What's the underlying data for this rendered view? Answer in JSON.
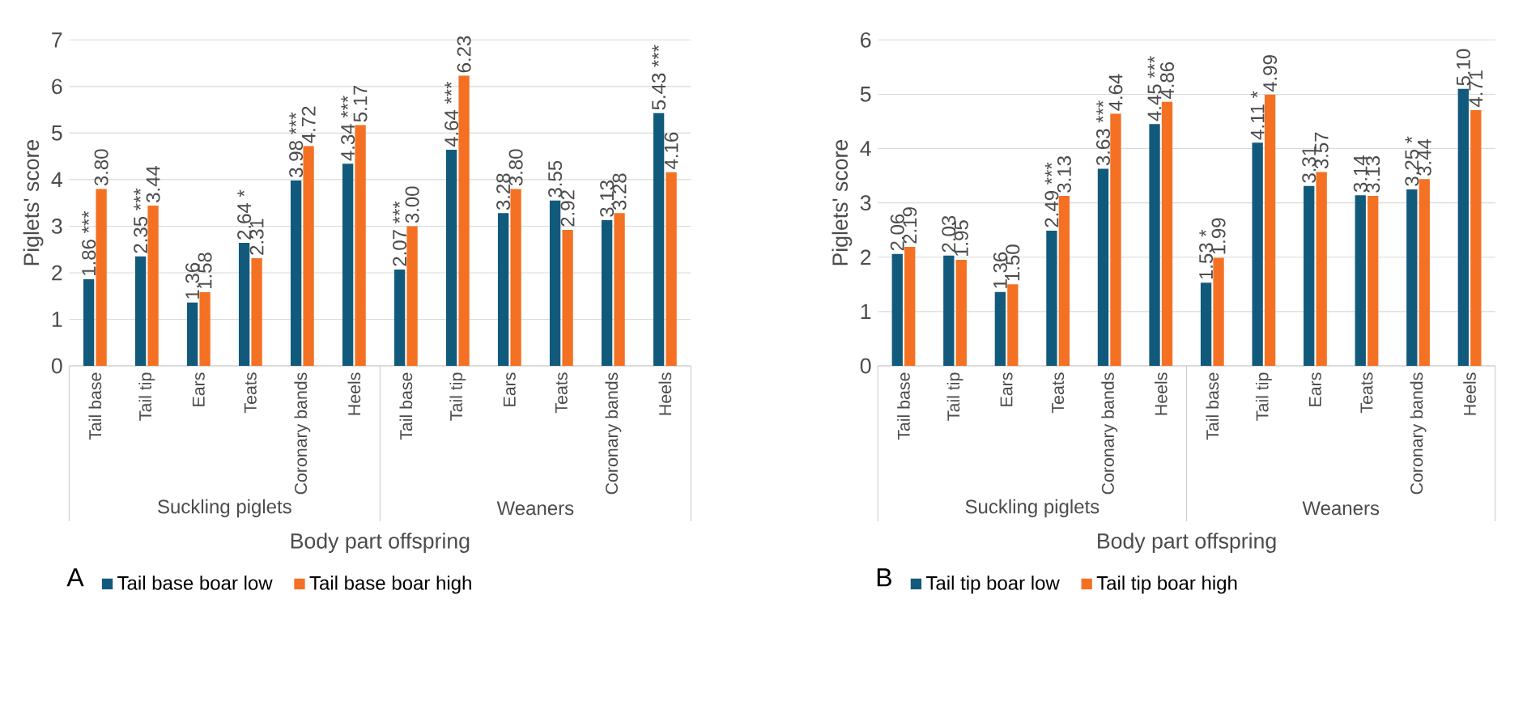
{
  "chart_data": [
    {
      "type": "bar",
      "title": "A",
      "xlabel": "Body part offspring",
      "ylabel": "Piglets' score",
      "categories": [
        "Tail base",
        "Tail tip",
        "Ears",
        "Teats",
        "Coronary bands",
        "Heels",
        "Tail base",
        "Tail tip",
        "Ears",
        "Teats",
        "Coronary bands",
        "Heels"
      ],
      "annotations": [
        "Suckling piglets",
        "Weaners"
      ],
      "series": [
        {
          "name": "Tail base boar low",
          "color": "#125a7c",
          "values": [
            1.86,
            2.35,
            1.36,
            2.64,
            3.98,
            4.34,
            2.07,
            4.64,
            3.28,
            3.55,
            3.13,
            5.43
          ],
          "value_labels": [
            "1.86 ***",
            "2.35 ***",
            "1.36",
            "2.64 *",
            "3.98 ***",
            "4.34 ***",
            "2.07 ***",
            "4.64 ***",
            "3.28",
            "3.55",
            "3.13",
            "5.43 ***"
          ]
        },
        {
          "name": "Tail base boar high",
          "color": "#f47124",
          "values": [
            3.8,
            3.44,
            1.58,
            2.31,
            4.72,
            5.17,
            3.0,
            6.23,
            3.8,
            2.92,
            3.28,
            4.16
          ],
          "value_labels": [
            "3.80",
            "3.44",
            "1.58",
            "2.31",
            "4.72",
            "5.17",
            "3.00",
            "6.23",
            "3.80",
            "2.92",
            "3.28",
            "4.16"
          ]
        }
      ],
      "ylim": [
        0,
        7
      ],
      "yticks": [
        0,
        1,
        2,
        3,
        4,
        5,
        6,
        7
      ],
      "grid": "y",
      "legend": "bottom"
    },
    {
      "type": "bar",
      "title": "B",
      "xlabel": "Body part offspring",
      "ylabel": "Piglets' score",
      "categories": [
        "Tail base",
        "Tail tip",
        "Ears",
        "Teats",
        "Coronary bands",
        "Heels",
        "Tail base",
        "Tail tip",
        "Ears",
        "Teats",
        "Coronary bands",
        "Heels"
      ],
      "annotations": [
        "Suckling piglets",
        "Weaners"
      ],
      "series": [
        {
          "name": "Tail tip boar low",
          "color": "#125a7c",
          "values": [
            2.06,
            2.03,
            1.36,
            2.49,
            3.63,
            4.45,
            1.53,
            4.11,
            3.31,
            3.14,
            3.25,
            5.1
          ],
          "value_labels": [
            "2.06",
            "2.03",
            "1.36",
            "2.49 ***",
            "3.63 ***",
            "4.45 ***",
            "1.53 *",
            "4.11 *",
            "3.31",
            "3.14",
            "3.25 *",
            "5.10"
          ]
        },
        {
          "name": "Tail tip boar high",
          "color": "#f47124",
          "values": [
            2.19,
            1.95,
            1.5,
            3.13,
            4.64,
            4.86,
            1.99,
            4.99,
            3.57,
            3.13,
            3.44,
            4.71
          ],
          "value_labels": [
            "2.19",
            "1.95",
            "1.50",
            "3.13",
            "4.64",
            "4.86",
            "1.99",
            "4.99",
            "3.57",
            "3.13",
            "3.44",
            "4.71"
          ]
        }
      ],
      "ylim": [
        0,
        6
      ],
      "yticks": [
        0,
        1,
        2,
        3,
        4,
        5,
        6
      ],
      "grid": "y",
      "legend": "bottom"
    }
  ]
}
